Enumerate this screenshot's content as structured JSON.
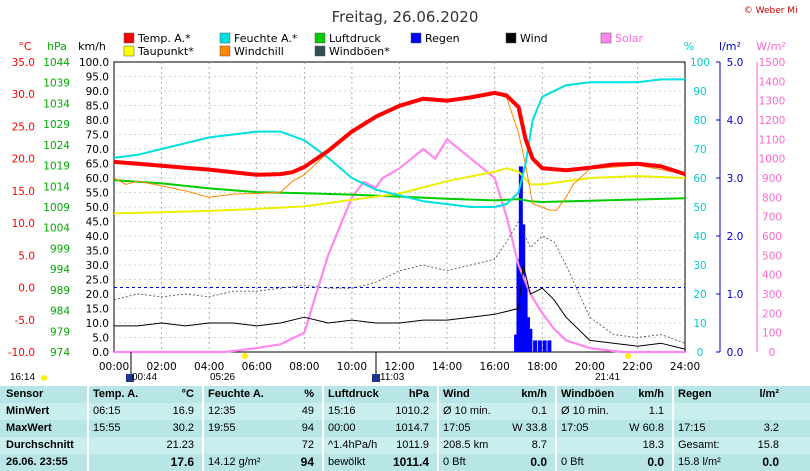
{
  "chart_data": {
    "type": "line",
    "title": "Freitag, 26.06.2020",
    "copyright": "© Weber Mike",
    "x_range_hours": [
      0,
      24
    ],
    "x_tick_labels": [
      "00:00",
      "02:00",
      "04:00",
      "06:00",
      "08:00",
      "10:00",
      "12:00",
      "14:00",
      "16:00",
      "18:00",
      "20:00",
      "22:00",
      "24:00"
    ],
    "axes": {
      "temp_c": {
        "label": "°C",
        "min": -10,
        "max": 35,
        "ticks": [
          "35.0",
          "30.0",
          "25.0",
          "20.0",
          "15.0",
          "10.0",
          "5.0",
          "0.0",
          "-5.0",
          "-10.0"
        ],
        "color": "#ff0000"
      },
      "pressure": {
        "label": "hPa",
        "min": 974,
        "max": 1044,
        "ticks": [
          "1044",
          "1039",
          "1034",
          "1029",
          "1024",
          "1019",
          "1014",
          "1009",
          "1004",
          "999",
          "994",
          "989",
          "984",
          "979",
          "974"
        ],
        "color": "#00aa00"
      },
      "wind_kmh": {
        "label": "km/h",
        "min": 0,
        "max": 100,
        "ticks": [
          "100.0",
          "95.0",
          "90.0",
          "85.0",
          "80.0",
          "75.0",
          "70.0",
          "65.0",
          "60.0",
          "55.0",
          "50.0",
          "45.0",
          "40.0",
          "35.0",
          "30.0",
          "25.0",
          "20.0",
          "15.0",
          "10.0",
          "5.0",
          "0.0"
        ],
        "color": "#000000"
      },
      "humidity": {
        "label": "%",
        "min": 0,
        "max": 100,
        "ticks": [
          "100",
          "90",
          "80",
          "70",
          "60",
          "50",
          "40",
          "30",
          "20",
          "10",
          "0"
        ],
        "color": "#00cccc"
      },
      "rain": {
        "label": "l/m²",
        "min": 0,
        "max": 5,
        "ticks": [
          "5.0",
          "4.0",
          "3.0",
          "2.0",
          "1.0",
          "0.0"
        ],
        "color": "#0000cc"
      },
      "solar": {
        "label": "W/m²",
        "min": 0,
        "max": 1500,
        "ticks": [
          "1500",
          "1400",
          "1300",
          "1200",
          "1100",
          "1000",
          "900",
          "800",
          "700",
          "600",
          "500",
          "400",
          "300",
          "200",
          "100",
          "0"
        ],
        "color": "#ff66cc"
      }
    },
    "legend": [
      {
        "name": "Temp. A.*",
        "color": "#ff0000"
      },
      {
        "name": "Feuchte A.*",
        "color": "#00e0e0"
      },
      {
        "name": "Luftdruck",
        "color": "#00cc00"
      },
      {
        "name": "Regen",
        "color": "#0000ff"
      },
      {
        "name": "Wind",
        "color": "#000000"
      },
      {
        "name": "Solar",
        "color": "#ff88ee"
      },
      {
        "name": "Taupunkt*",
        "color": "#ffff00"
      },
      {
        "name": "Windchill",
        "color": "#ff8800"
      },
      {
        "name": "Windböen*",
        "color": "#2f4f4f"
      }
    ],
    "series": [
      {
        "name": "Temp. A.*",
        "axis": "temp_c",
        "x": [
          0,
          1,
          2,
          3,
          4,
          5,
          6,
          7,
          7.5,
          8,
          9,
          10,
          11,
          12,
          13,
          14,
          15,
          16,
          16.5,
          17,
          17.3,
          17.6,
          18,
          19,
          20,
          21,
          22,
          23,
          24
        ],
        "y": [
          19.5,
          19.2,
          18.9,
          18.6,
          18.3,
          17.9,
          17.5,
          17.6,
          17.9,
          18.7,
          21.2,
          24.2,
          26.5,
          28.2,
          29.3,
          29.0,
          29.5,
          30.2,
          29.8,
          28.0,
          23.0,
          20.0,
          18.5,
          18.2,
          18.6,
          19.1,
          19.2,
          18.8,
          17.6
        ]
      },
      {
        "name": "Feuchte A.*",
        "axis": "humidity",
        "x": [
          0,
          1,
          2,
          3,
          4,
          5,
          6,
          7,
          8,
          9,
          10,
          11,
          12,
          13,
          14,
          15,
          16,
          16.5,
          17,
          17.3,
          17.6,
          18,
          19,
          20,
          21,
          22,
          23,
          24
        ],
        "y": [
          67,
          68,
          70,
          72,
          74,
          75,
          76,
          76,
          73,
          67,
          60,
          56,
          54,
          52,
          51,
          50,
          50,
          51,
          55,
          65,
          80,
          88,
          92,
          93,
          93,
          93,
          94,
          94
        ]
      },
      {
        "name": "Luftdruck",
        "axis": "pressure",
        "x": [
          0,
          2,
          4,
          6,
          8,
          10,
          12,
          14,
          16,
          17,
          17.5,
          18,
          20,
          22,
          24
        ],
        "y": [
          1015.5,
          1014.7,
          1013.5,
          1012.6,
          1012.3,
          1012.0,
          1011.5,
          1011.0,
          1010.6,
          1010.9,
          1010.4,
          1010.2,
          1010.5,
          1010.8,
          1011.1
        ]
      },
      {
        "name": "Taupunkt*",
        "axis": "temp_c",
        "x": [
          0,
          2,
          4,
          6,
          8,
          10,
          12,
          14,
          16,
          16.5,
          17,
          17.5,
          18,
          19,
          20,
          22,
          24
        ],
        "y": [
          11.5,
          11.7,
          11.9,
          12.2,
          12.6,
          13.6,
          14.6,
          16.5,
          18.0,
          18.5,
          18.0,
          16.0,
          16.0,
          16.5,
          17.0,
          17.3,
          17.0
        ]
      },
      {
        "name": "Windchill",
        "axis": "temp_c",
        "x": [
          0,
          0.5,
          1,
          2,
          3,
          4,
          5,
          6,
          7,
          7.5,
          8,
          9,
          10,
          11,
          12,
          13,
          14,
          15,
          16,
          16.5,
          17,
          17.3,
          17.6,
          18,
          18.3,
          18.6,
          19,
          19.3,
          20,
          22,
          24
        ],
        "y": [
          17.0,
          16.0,
          16.5,
          15.8,
          15.0,
          14.0,
          14.5,
          14.6,
          14.8,
          16.5,
          17.5,
          21.0,
          24.0,
          26.5,
          28.2,
          29.3,
          29.0,
          29.5,
          30.2,
          29.5,
          24.0,
          19.0,
          13.0,
          12.5,
          12.0,
          12.0,
          14.0,
          16.0,
          18.4,
          19.0,
          17.6
        ]
      },
      {
        "name": "Solar",
        "axis": "solar",
        "x": [
          0,
          4.6,
          5,
          6,
          7,
          8,
          8.5,
          9,
          9.5,
          10,
          10.5,
          11,
          11.3,
          12,
          12.5,
          13,
          13.5,
          14,
          14.5,
          15,
          15.5,
          16,
          16.5,
          17,
          17.5,
          18,
          18.5,
          19,
          20,
          21,
          21.4,
          24
        ],
        "y": [
          0,
          0,
          5,
          20,
          40,
          100,
          300,
          500,
          650,
          800,
          880,
          850,
          900,
          950,
          1000,
          1050,
          1000,
          1100,
          1050,
          1000,
          950,
          900,
          700,
          450,
          300,
          200,
          120,
          60,
          20,
          5,
          0,
          0
        ]
      },
      {
        "name": "Wind",
        "axis": "wind_kmh",
        "x": [
          0,
          1,
          2,
          3,
          4,
          5,
          6,
          7,
          8,
          9,
          10,
          11,
          12,
          13,
          14,
          15,
          16,
          17,
          17.2,
          17.5,
          18,
          18.5,
          19,
          20,
          21,
          22,
          23,
          24
        ],
        "y": [
          9,
          9,
          10,
          9,
          10,
          10,
          9,
          10,
          12,
          10,
          11,
          10,
          10,
          11,
          11,
          12,
          13,
          15,
          30,
          20,
          22,
          18,
          12,
          4,
          3,
          2,
          3,
          1
        ]
      },
      {
        "name": "Windböen*",
        "axis": "wind_kmh",
        "x": [
          0,
          1,
          2,
          3,
          4,
          5,
          6,
          7,
          8,
          9,
          10,
          11,
          12,
          13,
          14,
          15,
          16,
          16.5,
          17,
          17.5,
          18,
          18.5,
          19,
          20,
          21,
          22,
          23,
          24
        ],
        "y": [
          18,
          20,
          19,
          20,
          19,
          21,
          21,
          22,
          23,
          22,
          22,
          24,
          28,
          30,
          28,
          30,
          32,
          38,
          45,
          36,
          40,
          38,
          30,
          12,
          6,
          5,
          6,
          3
        ]
      }
    ],
    "rain_bars": {
      "name": "Regen",
      "axis": "rain",
      "x": [
        16.9,
        17.0,
        17.1,
        17.2,
        17.3,
        17.4,
        17.5,
        17.7,
        17.9,
        18.1,
        18.3
      ],
      "values": [
        0.3,
        1.6,
        3.2,
        2.2,
        1.2,
        0.6,
        0.4,
        0.2,
        0.2,
        0.2,
        0.2
      ]
    },
    "reference_line": {
      "axis": "temp_c",
      "value": 0
    },
    "time_labels": {
      "left_sunrise": "16:14",
      "moonrise": "00:44",
      "sunrise": "05:26",
      "moonset": "11:03",
      "sunset": "21:41"
    }
  },
  "table": {
    "headers": [
      "Sensor",
      "Temp. A.",
      "°C",
      "Feuchte A.",
      "%",
      "Luftdruck",
      "hPa",
      "Wind",
      "km/h",
      "Windböen",
      "km/h",
      "Regen",
      "l/m²"
    ],
    "rows": [
      {
        "label": "MinWert",
        "c": [
          "06:15",
          "16.9",
          "12:35",
          "49",
          "15:16",
          "1010.2",
          "Ø 10 min.",
          "0.1",
          "Ø 10 min.",
          "1.1",
          "",
          ""
        ]
      },
      {
        "label": "MaxWert",
        "c": [
          "15:55",
          "30.2",
          "19:55",
          "94",
          "00:00",
          "1014.7",
          "17:05",
          "W 33.8",
          "17:05",
          "W 60.8",
          "17:15",
          "3.2"
        ]
      },
      {
        "label": "Durchschnitt",
        "c": [
          "",
          "21.23",
          "",
          "72",
          "^1.4hPa/h",
          "1011.9",
          "208.5 km",
          "8.7",
          "",
          "18.3",
          "Gesamt:",
          "15.8"
        ]
      },
      {
        "label": "26.06. 23:55",
        "c": [
          "",
          "17.6",
          "14.12 g/m²",
          "94",
          "bewölkt",
          "1011.4",
          "0 Bft",
          "0.0",
          "0 Bft",
          "0.0",
          "15.8 l/m²",
          "0.0"
        ]
      }
    ]
  }
}
